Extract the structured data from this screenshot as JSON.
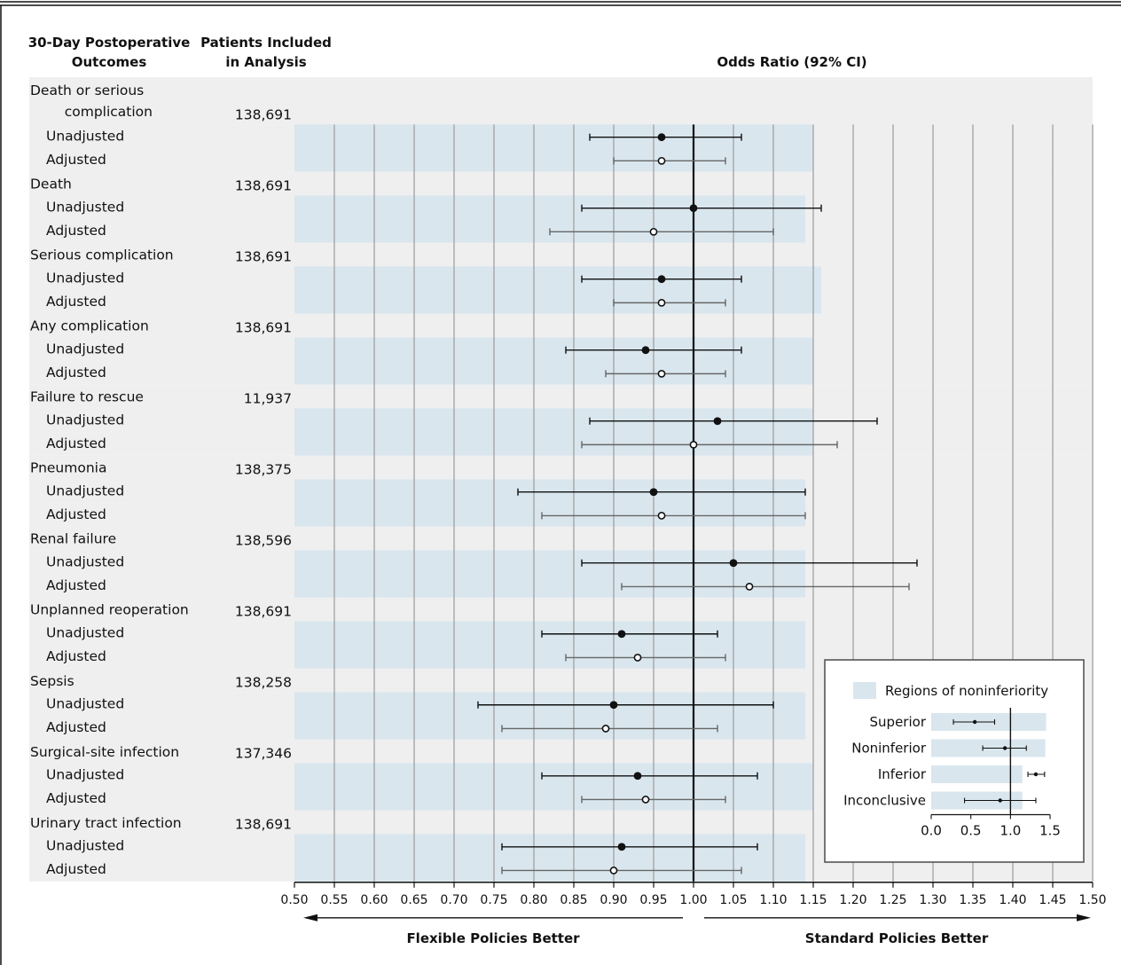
{
  "headers": {
    "outcome_line1": "30-Day Postoperative",
    "outcome_line2": "Outcomes",
    "patients_line1": "Patients Included",
    "patients_line2": "in Analysis",
    "or_title": "Odds Ratio (92% CI)"
  },
  "colors": {
    "band_gray": "#efefef",
    "noninferiority_blue": "#d9e6ee",
    "adjusted_whisker": "#666666",
    "axis": "#111111"
  },
  "chart_data": {
    "type": "forest",
    "xlim": [
      0.5,
      1.5
    ],
    "x_ticks": [
      "0.50",
      "0.55",
      "0.60",
      "0.65",
      "0.70",
      "0.75",
      "0.80",
      "0.85",
      "0.90",
      "0.95",
      "1.00",
      "1.05",
      "1.10",
      "1.15",
      "1.20",
      "1.25",
      "1.30",
      "1.35",
      "1.40",
      "1.45",
      "1.50"
    ],
    "reference_line": 1.0,
    "grid": true,
    "direction_left": "Flexible Policies Better",
    "direction_right": "Standard Policies Better",
    "groups": [
      {
        "outcome": "Death or serious complication",
        "label_lines": [
          "Death or serious",
          "complication"
        ],
        "patients": "138,691",
        "noninferiority_margin": 1.15,
        "unadjusted": {
          "label": "Unadjusted",
          "or": 0.96,
          "lo": 0.87,
          "hi": 1.06
        },
        "adjusted": {
          "label": "Adjusted",
          "or": 0.96,
          "lo": 0.9,
          "hi": 1.04
        }
      },
      {
        "outcome": "Death",
        "label_lines": [
          "Death"
        ],
        "patients": "138,691",
        "noninferiority_margin": 1.14,
        "unadjusted": {
          "label": "Unadjusted",
          "or": 1.0,
          "lo": 0.86,
          "hi": 1.16
        },
        "adjusted": {
          "label": "Adjusted",
          "or": 0.95,
          "lo": 0.82,
          "hi": 1.1
        }
      },
      {
        "outcome": "Serious complication",
        "label_lines": [
          "Serious complication"
        ],
        "patients": "138,691",
        "noninferiority_margin": 1.16,
        "unadjusted": {
          "label": "Unadjusted",
          "or": 0.96,
          "lo": 0.86,
          "hi": 1.06
        },
        "adjusted": {
          "label": "Adjusted",
          "or": 0.96,
          "lo": 0.9,
          "hi": 1.04
        }
      },
      {
        "outcome": "Any complication",
        "label_lines": [
          "Any complication"
        ],
        "patients": "138,691",
        "noninferiority_margin": 1.15,
        "unadjusted": {
          "label": "Unadjusted",
          "or": 0.94,
          "lo": 0.84,
          "hi": 1.06
        },
        "adjusted": {
          "label": "Adjusted",
          "or": 0.96,
          "lo": 0.89,
          "hi": 1.04
        }
      },
      {
        "outcome": "Failure to rescue",
        "label_lines": [
          "Failure to rescue"
        ],
        "patients": "11,937",
        "noninferiority_margin": 1.15,
        "unadjusted": {
          "label": "Unadjusted",
          "or": 1.03,
          "lo": 0.87,
          "hi": 1.23
        },
        "adjusted": {
          "label": "Adjusted",
          "or": 1.0,
          "lo": 0.86,
          "hi": 1.18
        }
      },
      {
        "outcome": "Pneumonia",
        "label_lines": [
          "Pneumonia"
        ],
        "patients": "138,375",
        "noninferiority_margin": 1.14,
        "unadjusted": {
          "label": "Unadjusted",
          "or": 0.95,
          "lo": 0.78,
          "hi": 1.14
        },
        "adjusted": {
          "label": "Adjusted",
          "or": 0.96,
          "lo": 0.81,
          "hi": 1.14
        }
      },
      {
        "outcome": "Renal failure",
        "label_lines": [
          "Renal failure"
        ],
        "patients": "138,596",
        "noninferiority_margin": 1.14,
        "unadjusted": {
          "label": "Unadjusted",
          "or": 1.05,
          "lo": 0.86,
          "hi": 1.28
        },
        "adjusted": {
          "label": "Adjusted",
          "or": 1.07,
          "lo": 0.91,
          "hi": 1.27
        }
      },
      {
        "outcome": "Unplanned reoperation",
        "label_lines": [
          "Unplanned reoperation"
        ],
        "patients": "138,691",
        "noninferiority_margin": 1.14,
        "unadjusted": {
          "label": "Unadjusted",
          "or": 0.91,
          "lo": 0.81,
          "hi": 1.03
        },
        "adjusted": {
          "label": "Adjusted",
          "or": 0.93,
          "lo": 0.84,
          "hi": 1.04
        }
      },
      {
        "outcome": "Sepsis",
        "label_lines": [
          "Sepsis"
        ],
        "patients": "138,258",
        "noninferiority_margin": 1.14,
        "unadjusted": {
          "label": "Unadjusted",
          "or": 0.9,
          "lo": 0.73,
          "hi": 1.1
        },
        "adjusted": {
          "label": "Adjusted",
          "or": 0.89,
          "lo": 0.76,
          "hi": 1.03
        }
      },
      {
        "outcome": "Surgical-site infection",
        "label_lines": [
          "Surgical-site infection"
        ],
        "patients": "137,346",
        "noninferiority_margin": 1.15,
        "unadjusted": {
          "label": "Unadjusted",
          "or": 0.93,
          "lo": 0.81,
          "hi": 1.08
        },
        "adjusted": {
          "label": "Adjusted",
          "or": 0.94,
          "lo": 0.86,
          "hi": 1.04
        }
      },
      {
        "outcome": "Urinary tract infection",
        "label_lines": [
          "Urinary tract infection"
        ],
        "patients": "138,691",
        "noninferiority_margin": 1.14,
        "unadjusted": {
          "label": "Unadjusted",
          "or": 0.91,
          "lo": 0.76,
          "hi": 1.08
        },
        "adjusted": {
          "label": "Adjusted",
          "or": 0.9,
          "lo": 0.76,
          "hi": 1.06
        }
      }
    ],
    "legend": {
      "swatch_label": "Regions of noninferiority",
      "placement": "bottom-right",
      "x_ticks": [
        "0.0",
        "0.5",
        "1.0",
        "1.5"
      ],
      "xlim": [
        0,
        1.6
      ],
      "reference_line": 1.0,
      "examples": [
        {
          "label": "Superior",
          "margin": 1.45,
          "or": 0.55,
          "lo": 0.28,
          "hi": 0.8
        },
        {
          "label": "Noninferior",
          "margin": 1.44,
          "or": 0.93,
          "lo": 0.65,
          "hi": 1.2
        },
        {
          "label": "Inferior",
          "margin": 1.15,
          "or": 1.32,
          "lo": 1.22,
          "hi": 1.43
        },
        {
          "label": "Inconclusive",
          "margin": 1.15,
          "or": 0.87,
          "lo": 0.42,
          "hi": 1.32
        }
      ]
    }
  }
}
